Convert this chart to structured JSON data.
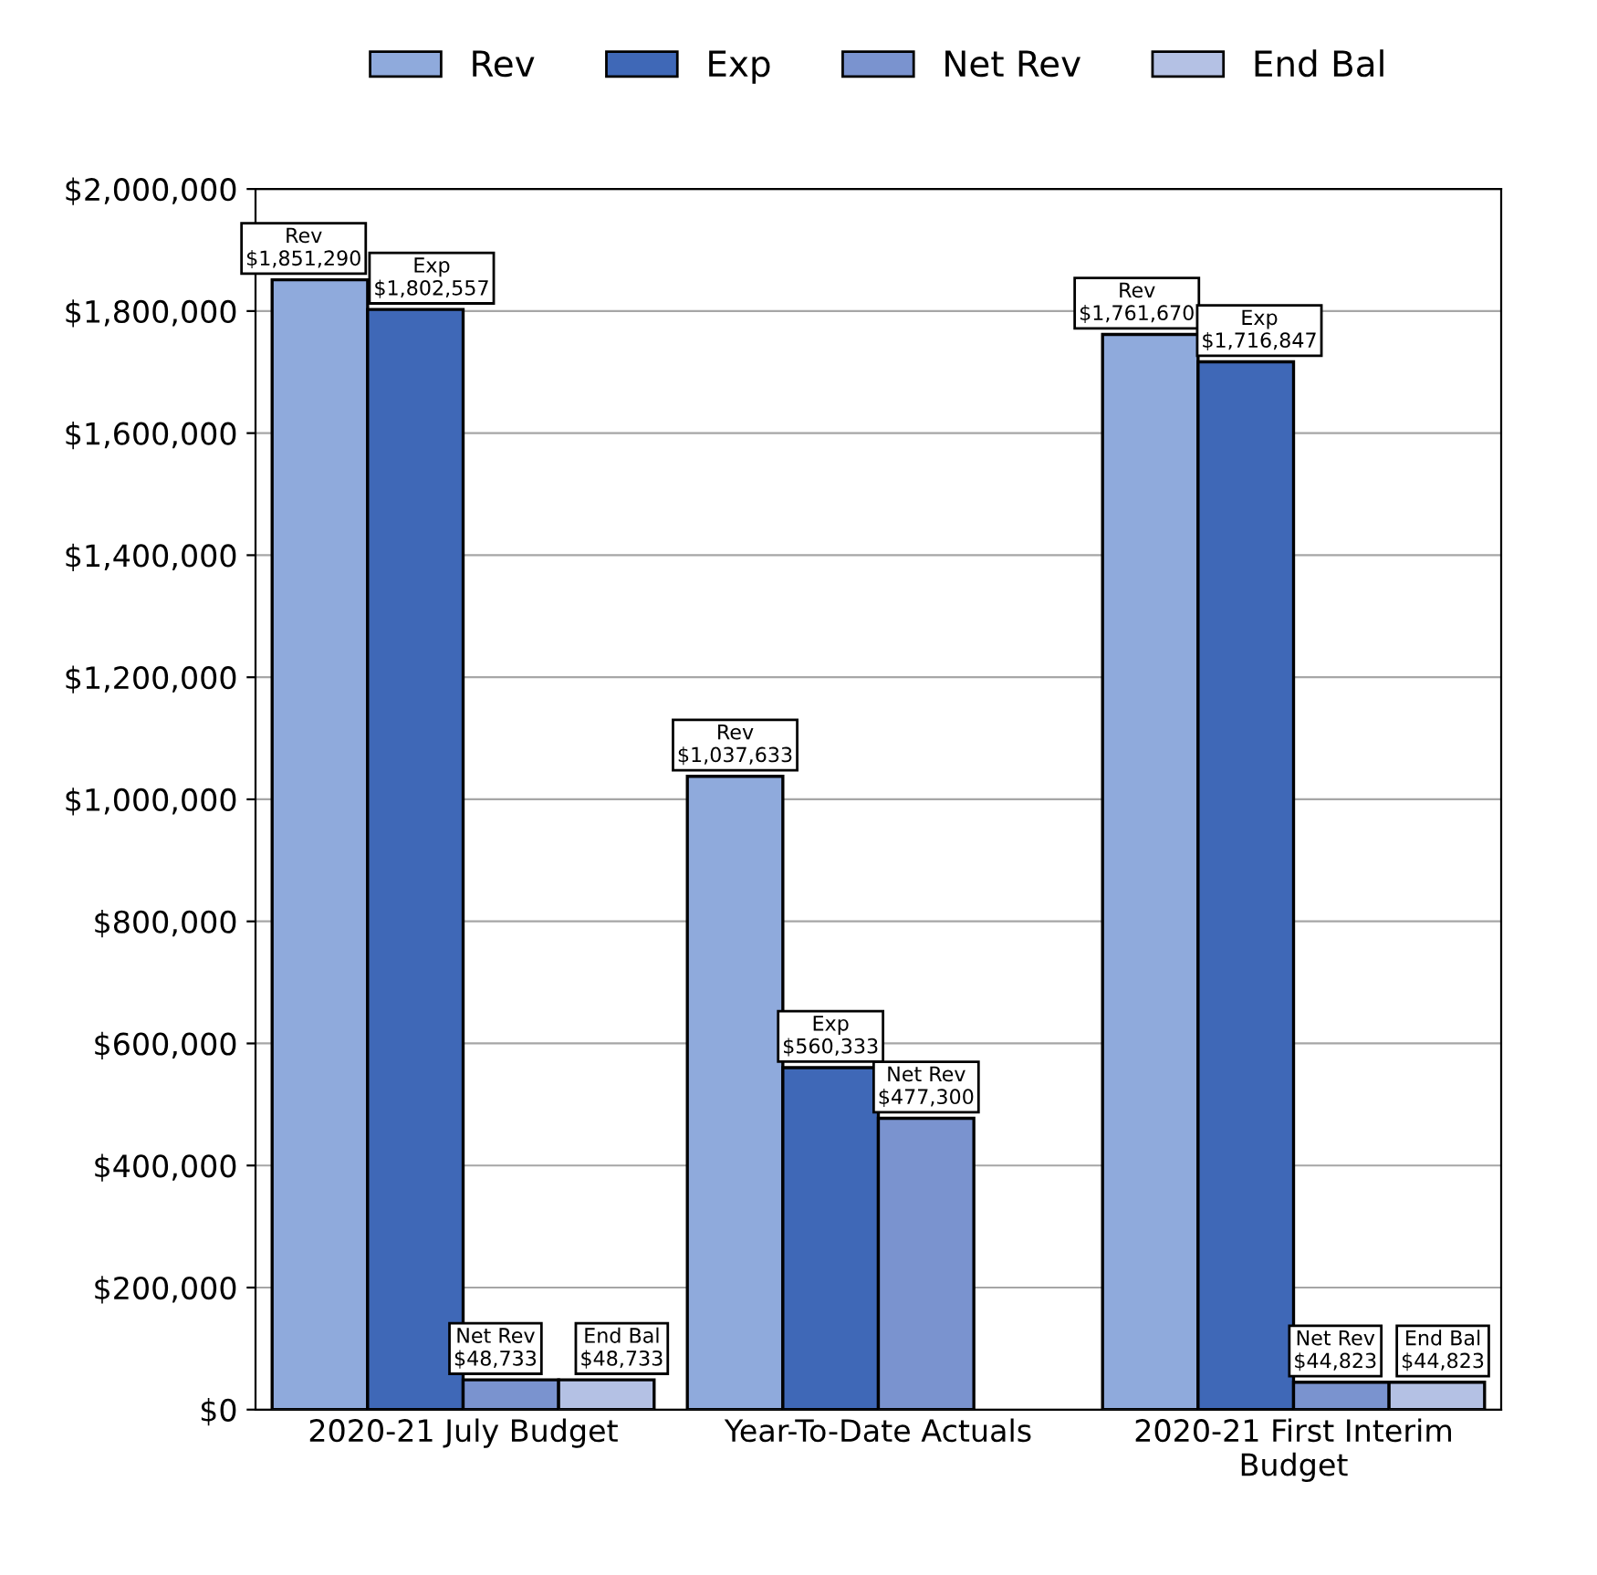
{
  "chart_data": {
    "type": "bar",
    "categories": [
      "2020-21 July Budget",
      "Year-To-Date Actuals",
      "2020-21 First Interim\nBudget"
    ],
    "series": [
      {
        "name": "Rev",
        "color": "#8faadc",
        "values": [
          1851290,
          1037633,
          1761670
        ],
        "value_labels": [
          "$1,851,290",
          "$1,037,633",
          "$1,761,670"
        ]
      },
      {
        "name": "Exp",
        "color": "#3f68b7",
        "values": [
          1802557,
          560333,
          1716847
        ],
        "value_labels": [
          "$1,802,557",
          "$560,333",
          "$1,716,847"
        ]
      },
      {
        "name": "Net Rev",
        "color": "#7a93cf",
        "values": [
          48733,
          477300,
          44823
        ],
        "value_labels": [
          "$48,733",
          "$477,300",
          "$44,823"
        ]
      },
      {
        "name": "End Bal",
        "color": "#b4c1e4",
        "values": [
          48733,
          null,
          44823
        ],
        "value_labels": [
          "$48,733",
          null,
          "$44,823"
        ]
      }
    ],
    "ylim": [
      0,
      2000000
    ],
    "yticks": [
      {
        "value": 0,
        "label": "$0"
      },
      {
        "value": 200000,
        "label": "$200,000"
      },
      {
        "value": 400000,
        "label": "$400,000"
      },
      {
        "value": 600000,
        "label": "$600,000"
      },
      {
        "value": 800000,
        "label": "$800,000"
      },
      {
        "value": 1000000,
        "label": "$1,000,000"
      },
      {
        "value": 1200000,
        "label": "$1,200,000"
      },
      {
        "value": 1400000,
        "label": "$1,400,000"
      },
      {
        "value": 1600000,
        "label": "$1,600,000"
      },
      {
        "value": 1800000,
        "label": "$1,800,000"
      },
      {
        "value": 2000000,
        "label": "$2,000,000"
      }
    ],
    "grid": "y",
    "legend": "top"
  }
}
